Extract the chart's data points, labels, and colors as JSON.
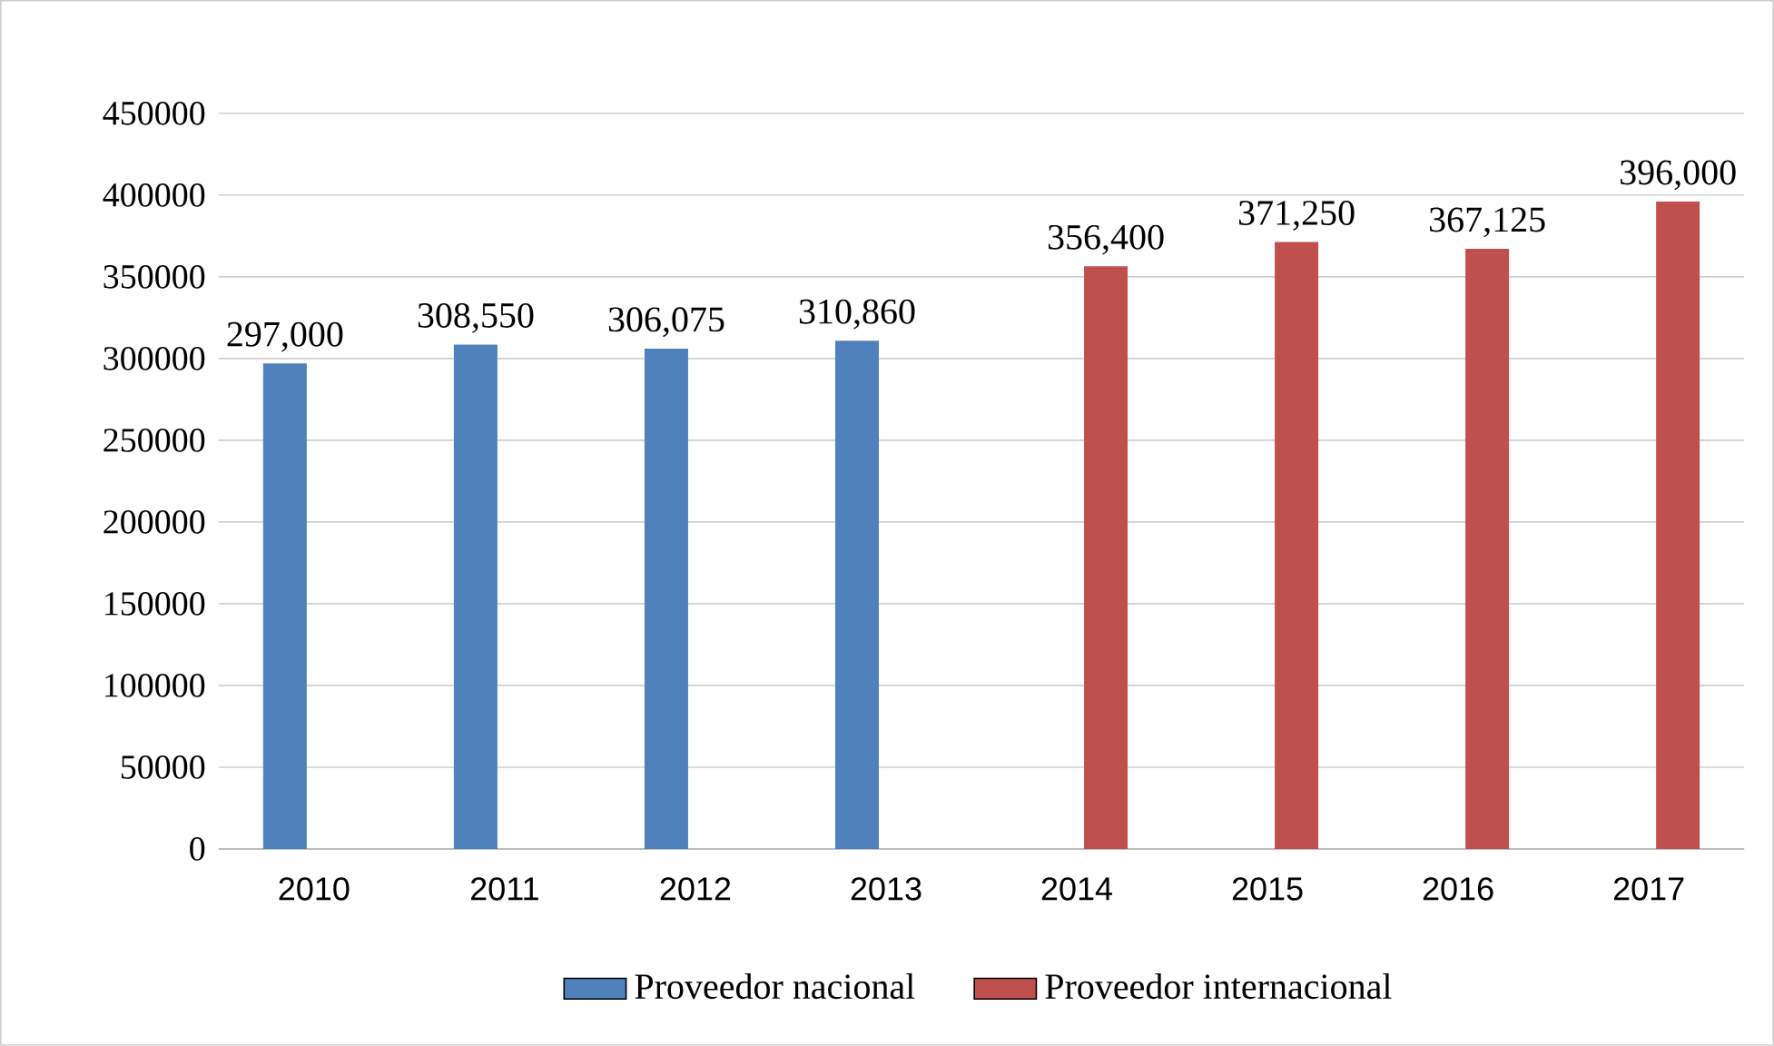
{
  "chart_data": {
    "type": "bar",
    "categories": [
      "2010",
      "2011",
      "2012",
      "2013",
      "2014",
      "2015",
      "2016",
      "2017"
    ],
    "series": [
      {
        "name": "Proveedor nacional",
        "color": "#4f81bd",
        "values": [
          297000,
          308550,
          306075,
          310860,
          null,
          null,
          null,
          null
        ],
        "value_labels": [
          "297,000",
          "308,550",
          "306,075",
          "310,860",
          null,
          null,
          null,
          null
        ]
      },
      {
        "name": "Proveedor internacional",
        "color": "#c0504d",
        "values": [
          null,
          null,
          null,
          null,
          356400,
          371250,
          367125,
          396000
        ],
        "value_labels": [
          null,
          null,
          null,
          null,
          "356,400",
          "371,250",
          "367,125",
          "396,000"
        ]
      }
    ],
    "ylim": [
      0,
      450000
    ],
    "yticks": [
      0,
      50000,
      100000,
      150000,
      200000,
      250000,
      300000,
      350000,
      400000,
      450000
    ],
    "grid": "y",
    "legend": "bottom"
  }
}
